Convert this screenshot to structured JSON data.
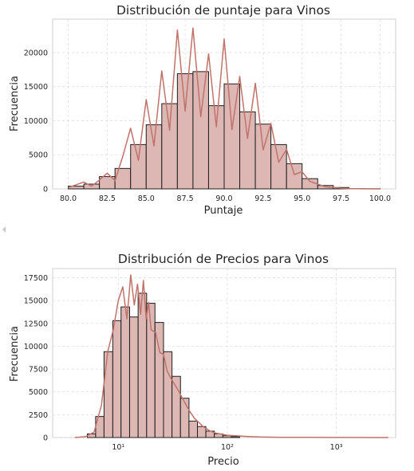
{
  "colors": {
    "bar_fill": "#ddb7b4",
    "bar_edge": "#1f1f1f",
    "kde_line": "#c0736a",
    "grid": "#dedede",
    "axis": "#cfcfcf"
  },
  "chart_data": [
    {
      "type": "bar",
      "title": "Distribución de puntaje para Vinos",
      "xlabel": "Puntaje",
      "ylabel": "Frecuencia",
      "grid": true,
      "xlim": [
        79.0,
        101.0
      ],
      "ylim": [
        0,
        24900
      ],
      "xticks": [
        80.0,
        82.5,
        85.0,
        87.5,
        90.0,
        92.5,
        95.0,
        97.5,
        100.0
      ],
      "xtick_labels": [
        "80.0",
        "82.5",
        "85.0",
        "87.5",
        "90.0",
        "92.5",
        "95.0",
        "97.5",
        "100.0"
      ],
      "yticks": [
        0,
        5000,
        10000,
        15000,
        20000
      ],
      "ytick_labels": [
        "0",
        "5000",
        "10000",
        "15000",
        "20000"
      ],
      "bin_width": 1.0,
      "bins": [
        {
          "x": 80.0,
          "value": 400
        },
        {
          "x": 81.0,
          "value": 700
        },
        {
          "x": 82.0,
          "value": 1800
        },
        {
          "x": 83.0,
          "value": 3000
        },
        {
          "x": 84.0,
          "value": 6500
        },
        {
          "x": 85.0,
          "value": 9400
        },
        {
          "x": 86.0,
          "value": 12500
        },
        {
          "x": 87.0,
          "value": 16900
        },
        {
          "x": 88.0,
          "value": 17200
        },
        {
          "x": 89.0,
          "value": 12200
        },
        {
          "x": 90.0,
          "value": 15400
        },
        {
          "x": 91.0,
          "value": 11300
        },
        {
          "x": 92.0,
          "value": 9500
        },
        {
          "x": 93.0,
          "value": 6500
        },
        {
          "x": 94.0,
          "value": 3700
        },
        {
          "x": 95.0,
          "value": 1500
        },
        {
          "x": 96.0,
          "value": 500
        },
        {
          "x": 97.0,
          "value": 200
        },
        {
          "x": 98.0,
          "value": 50
        },
        {
          "x": 99.0,
          "value": 20
        }
      ],
      "kde": {
        "x": [
          80.0,
          80.5,
          81.0,
          81.5,
          82.0,
          82.5,
          83.0,
          83.5,
          84.0,
          84.5,
          85.0,
          85.5,
          86.0,
          86.5,
          87.0,
          87.5,
          88.0,
          88.5,
          89.0,
          89.5,
          90.0,
          90.5,
          91.0,
          91.5,
          92.0,
          92.5,
          93.0,
          93.5,
          94.0,
          94.5,
          95.0,
          95.5,
          96.0,
          96.5,
          97.0,
          97.5,
          98.0,
          98.5,
          99.0,
          99.5,
          100.0
        ],
        "y": [
          200,
          600,
          1000,
          400,
          1300,
          2300,
          1200,
          4800,
          8900,
          4200,
          13100,
          6300,
          17300,
          8600,
          23300,
          11400,
          23600,
          10600,
          19800,
          9100,
          22000,
          8700,
          16500,
          7400,
          15500,
          5700,
          9600,
          3900,
          5800,
          2100,
          2500,
          1100,
          700,
          300,
          200,
          80,
          40,
          20,
          10,
          5,
          0
        ]
      }
    },
    {
      "type": "bar",
      "title": "Distribución de Precios para Vinos",
      "xlabel": "Precio",
      "ylabel": "Frecuencia",
      "xscale": "log",
      "grid": true,
      "xlim": [
        2.5,
        3500
      ],
      "ylim": [
        0,
        18500
      ],
      "xticks": [
        10,
        100,
        1000
      ],
      "xtick_labels": [
        "10¹",
        "10²",
        "10³"
      ],
      "yticks": [
        0,
        2500,
        5000,
        7500,
        10000,
        12500,
        15000,
        17500
      ],
      "ytick_labels": [
        "0",
        "2500",
        "5000",
        "7500",
        "10000",
        "12500",
        "15000",
        "17500"
      ],
      "bins": [
        {
          "x0": 5.2,
          "x1": 6.2,
          "value": 400
        },
        {
          "x0": 6.2,
          "x1": 7.4,
          "value": 2300
        },
        {
          "x0": 7.4,
          "x1": 8.9,
          "value": 9400
        },
        {
          "x0": 8.9,
          "x1": 10.6,
          "value": 12800
        },
        {
          "x0": 10.6,
          "x1": 12.7,
          "value": 14300
        },
        {
          "x0": 12.7,
          "x1": 15.2,
          "value": 13200
        },
        {
          "x0": 15.2,
          "x1": 18.2,
          "value": 15800
        },
        {
          "x0": 18.2,
          "x1": 21.7,
          "value": 14700
        },
        {
          "x0": 21.7,
          "x1": 26.0,
          "value": 12600
        },
        {
          "x0": 26.0,
          "x1": 31.1,
          "value": 9400
        },
        {
          "x0": 31.1,
          "x1": 37.2,
          "value": 6700
        },
        {
          "x0": 37.2,
          "x1": 44.5,
          "value": 4300
        },
        {
          "x0": 44.5,
          "x1": 53.2,
          "value": 1800
        },
        {
          "x0": 53.2,
          "x1": 63.6,
          "value": 1200
        },
        {
          "x0": 63.6,
          "x1": 76.0,
          "value": 700
        },
        {
          "x0": 76.0,
          "x1": 91.0,
          "value": 400
        },
        {
          "x0": 91.0,
          "x1": 109.0,
          "value": 200
        },
        {
          "x0": 109.0,
          "x1": 130.0,
          "value": 100
        }
      ],
      "kde": {
        "x": [
          4,
          5,
          6,
          7,
          7.5,
          8,
          9,
          10,
          11,
          12,
          13,
          14,
          15,
          16,
          17,
          18,
          19,
          20,
          22,
          24,
          26,
          28,
          30,
          35,
          40,
          45,
          50,
          60,
          70,
          80,
          100,
          150,
          200,
          300,
          500,
          1000,
          3000
        ],
        "y": [
          0,
          100,
          600,
          3500,
          6500,
          9400,
          11800,
          15000,
          16500,
          13000,
          17800,
          14500,
          16800,
          13500,
          17200,
          13000,
          14800,
          11800,
          11500,
          9300,
          9100,
          7300,
          6600,
          5300,
          4000,
          2900,
          2100,
          1200,
          700,
          450,
          250,
          120,
          60,
          30,
          15,
          5,
          0
        ]
      }
    }
  ]
}
